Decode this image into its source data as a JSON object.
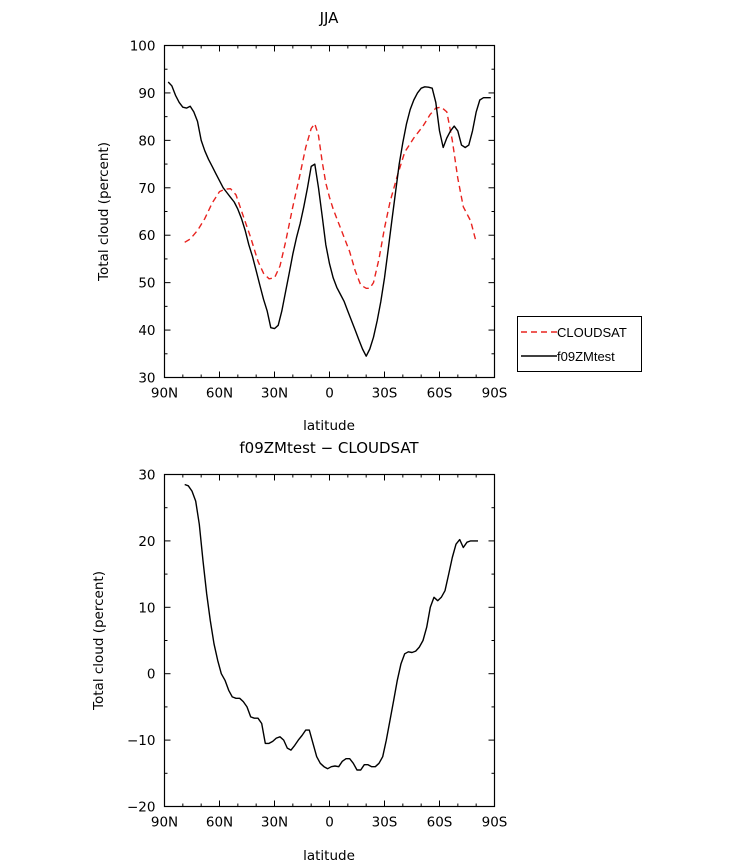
{
  "chart_data": [
    {
      "type": "line",
      "title": "JJA",
      "xlabel": "latitude",
      "ylabel": "Total cloud (percent)",
      "xlim": [
        90,
        -90
      ],
      "ylim": [
        30,
        100
      ],
      "x_ticks": [
        {
          "value": 90,
          "label": "90N"
        },
        {
          "value": 60,
          "label": "60N"
        },
        {
          "value": 30,
          "label": "30N"
        },
        {
          "value": 0,
          "label": "0"
        },
        {
          "value": -30,
          "label": "30S"
        },
        {
          "value": -60,
          "label": "60S"
        },
        {
          "value": -90,
          "label": "90S"
        }
      ],
      "y_ticks": [
        {
          "value": 30,
          "label": "30"
        },
        {
          "value": 40,
          "label": "40"
        },
        {
          "value": 50,
          "label": "50"
        },
        {
          "value": 60,
          "label": "60"
        },
        {
          "value": 70,
          "label": "70"
        },
        {
          "value": 80,
          "label": "80"
        },
        {
          "value": 90,
          "label": "90"
        },
        {
          "value": 100,
          "label": "100"
        }
      ],
      "legend": {
        "placement": "right"
      },
      "series": [
        {
          "name": "CLOUDSAT",
          "color": "#e8231f",
          "dash": true,
          "x": [
            79,
            76,
            72,
            68,
            64,
            60,
            57,
            54,
            51,
            47,
            43,
            39,
            36,
            33,
            30,
            27,
            24,
            20,
            16,
            13,
            10,
            8,
            6,
            4,
            2,
            0,
            -2,
            -5,
            -8,
            -11,
            -14,
            -17,
            -20,
            -22,
            -24,
            -27,
            -30,
            -33,
            -37,
            -41,
            -46,
            -51,
            -55,
            -58,
            -61,
            -64,
            -67,
            -70,
            -73,
            -77,
            -80
          ],
          "y": [
            58.5,
            59.2,
            61,
            63.5,
            66.8,
            69.2,
            69.7,
            69.8,
            68.5,
            64,
            59.5,
            54.5,
            52,
            50.8,
            51,
            53.5,
            58.5,
            66,
            73,
            78.5,
            82.5,
            83.5,
            81,
            75.5,
            71,
            68,
            65.5,
            62.5,
            59.5,
            56.5,
            52.5,
            49.5,
            48.8,
            48.8,
            50,
            55,
            61.5,
            67,
            72.5,
            77.5,
            80.5,
            83,
            85.5,
            86.8,
            87,
            86,
            80,
            72,
            66,
            63,
            58.5
          ]
        },
        {
          "name": "f09ZMtest",
          "color": "#000000",
          "dash": false,
          "x": [
            88,
            86,
            84,
            82,
            80,
            78,
            76,
            74,
            72,
            70,
            68,
            66,
            64,
            62,
            60,
            58,
            56,
            54,
            52,
            50,
            48,
            46,
            44,
            42,
            40,
            38,
            36,
            34,
            32,
            30,
            28,
            26,
            24,
            22,
            20,
            18,
            16,
            14,
            12,
            10,
            8,
            6,
            4,
            2,
            0,
            -2,
            -4,
            -6,
            -8,
            -10,
            -12,
            -14,
            -16,
            -18,
            -20,
            -22,
            -24,
            -26,
            -28,
            -30,
            -32,
            -34,
            -36,
            -38,
            -40,
            -42,
            -44,
            -46,
            -48,
            -50,
            -52,
            -54,
            -56,
            -58,
            -60,
            -62,
            -64,
            -66,
            -68,
            -70,
            -72,
            -74,
            -76,
            -78,
            -80,
            -82,
            -84,
            -86,
            -88
          ],
          "y": [
            92.3,
            91.5,
            89.5,
            88,
            87,
            86.8,
            87.2,
            86,
            84,
            80,
            77.8,
            76,
            74.5,
            73,
            71.5,
            70,
            69,
            68,
            67,
            65.5,
            63.5,
            61,
            58,
            55.5,
            52.5,
            49.5,
            46.5,
            44,
            40.5,
            40.3,
            41,
            44,
            48,
            52,
            56,
            59.5,
            62.5,
            66,
            70,
            74.5,
            75,
            70,
            64,
            58,
            54,
            51,
            49,
            47.5,
            46,
            44,
            42,
            40,
            38,
            36,
            34.5,
            36,
            38.5,
            42,
            46,
            51,
            57,
            63,
            69,
            75,
            79.5,
            83.5,
            86.5,
            88.5,
            90,
            91,
            91.3,
            91.2,
            91,
            88,
            82,
            78.5,
            80.5,
            82,
            83,
            82,
            79,
            78.5,
            79,
            82,
            86,
            88.5,
            89,
            89,
            89
          ]
        }
      ]
    },
    {
      "type": "line",
      "title": "f09ZMtest − CLOUDSAT",
      "xlabel": "latitude",
      "ylabel": "Total cloud (percent)",
      "xlim": [
        90,
        -90
      ],
      "ylim": [
        -20,
        30
      ],
      "x_ticks": [
        {
          "value": 90,
          "label": "90N"
        },
        {
          "value": 60,
          "label": "60N"
        },
        {
          "value": 30,
          "label": "30N"
        },
        {
          "value": 0,
          "label": "0"
        },
        {
          "value": -30,
          "label": "30S"
        },
        {
          "value": -60,
          "label": "60S"
        },
        {
          "value": -90,
          "label": "90S"
        }
      ],
      "y_ticks": [
        {
          "value": -20,
          "label": "−20"
        },
        {
          "value": -10,
          "label": "−10"
        },
        {
          "value": 0,
          "label": "0"
        },
        {
          "value": 10,
          "label": "10"
        },
        {
          "value": 20,
          "label": "20"
        },
        {
          "value": 30,
          "label": "30"
        }
      ],
      "series": [
        {
          "color": "#000000",
          "dash": false,
          "x": [
            79,
            77,
            75,
            73,
            71,
            69,
            67,
            65,
            63,
            61,
            59,
            57,
            55,
            53,
            51,
            49,
            47,
            45,
            43,
            41,
            39,
            37,
            35,
            33,
            31,
            29,
            27,
            25,
            23,
            21,
            19,
            17,
            15,
            13,
            11,
            9,
            7,
            5,
            3,
            1,
            -1,
            -3,
            -5,
            -7,
            -9,
            -11,
            -13,
            -15,
            -17,
            -19,
            -21,
            -23,
            -25,
            -27,
            -29,
            -31,
            -33,
            -35,
            -37,
            -39,
            -41,
            -43,
            -45,
            -47,
            -49,
            -51,
            -53,
            -55,
            -57,
            -59,
            -61,
            -63,
            -65,
            -67,
            -69,
            -71,
            -73,
            -75,
            -77,
            -79,
            -81
          ],
          "y": [
            28.5,
            28.3,
            27.5,
            26,
            22.5,
            17,
            12,
            8,
            4.5,
            2,
            0,
            -1,
            -2.5,
            -3.5,
            -3.7,
            -3.7,
            -4.2,
            -5,
            -6.5,
            -6.7,
            -6.7,
            -7.5,
            -10.5,
            -10.5,
            -10.2,
            -9.7,
            -9.5,
            -10,
            -11.2,
            -11.5,
            -10.8,
            -10,
            -9.3,
            -8.5,
            -8.5,
            -10.5,
            -12.5,
            -13.5,
            -14,
            -14.3,
            -14,
            -13.9,
            -14,
            -13.2,
            -12.8,
            -12.8,
            -13.5,
            -14.5,
            -14.5,
            -13.7,
            -13.7,
            -14,
            -14,
            -13.5,
            -12.5,
            -10,
            -7,
            -4,
            -1,
            1.5,
            3,
            3.3,
            3.2,
            3.4,
            4,
            5,
            7,
            10,
            11.5,
            11,
            11.5,
            12.5,
            15,
            17.5,
            19.5,
            20.2,
            19,
            19.8,
            20,
            20,
            20
          ]
        }
      ]
    }
  ]
}
